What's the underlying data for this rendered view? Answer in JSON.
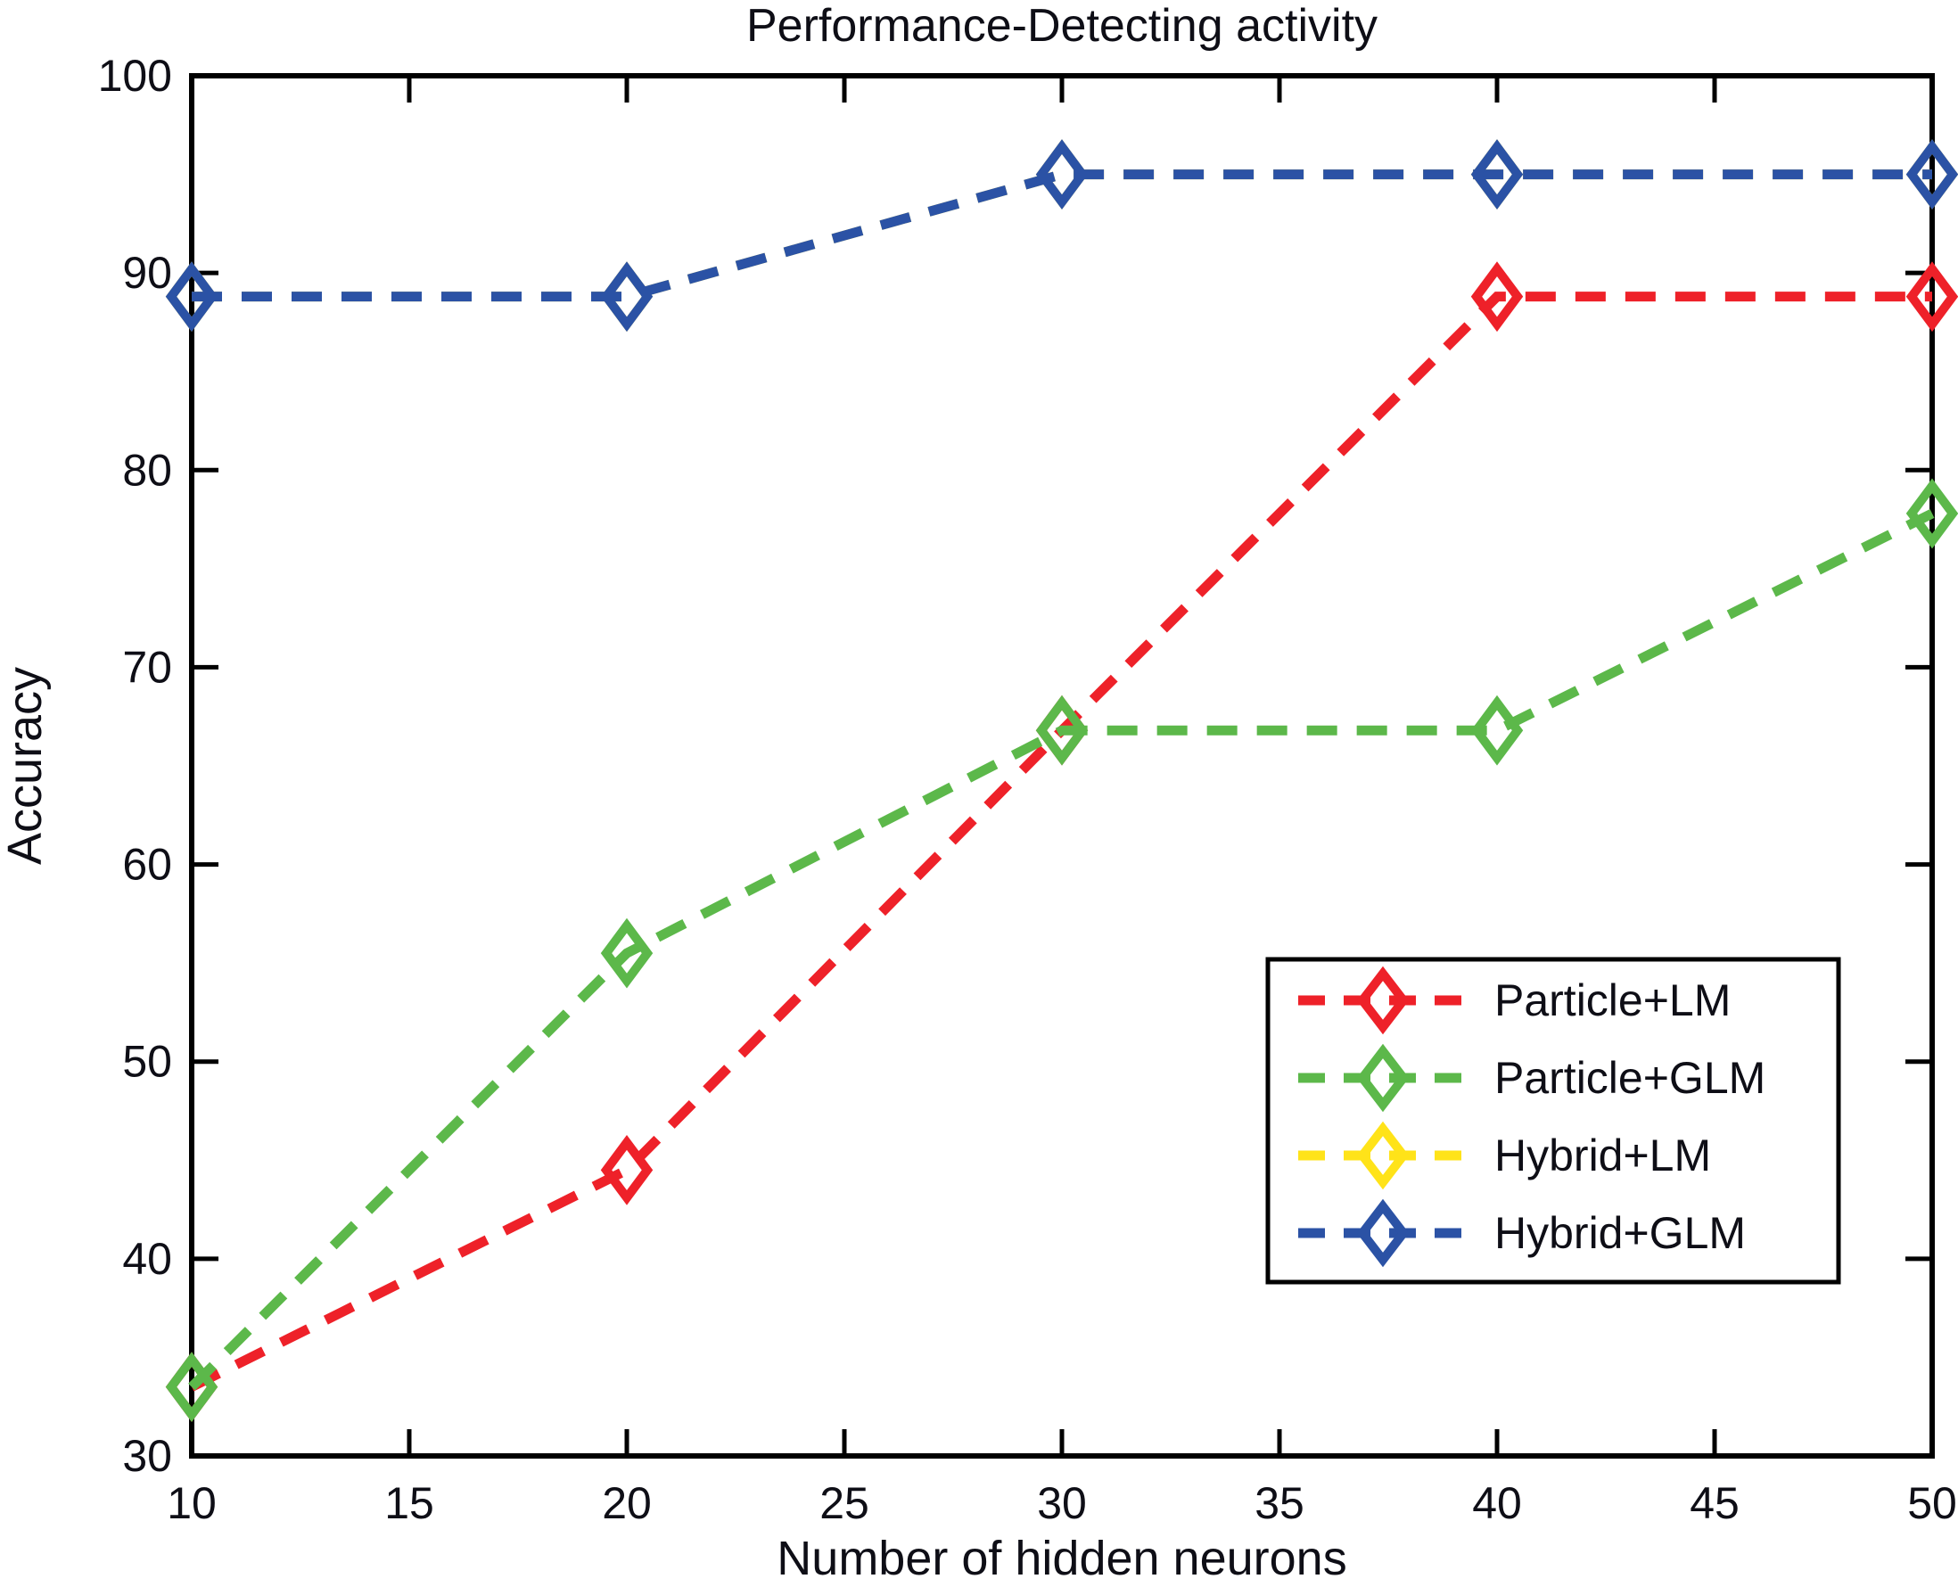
{
  "figure": {
    "background": "#ffffff",
    "axis_color": "#000000",
    "text_color": "#0e0e16"
  },
  "chart_data": {
    "type": "line",
    "title": "Performance-Detecting activity",
    "xlabel": "Number of hidden neurons",
    "ylabel": "Accuracy",
    "x": [
      10,
      20,
      30,
      40,
      50
    ],
    "xlim": [
      10,
      50
    ],
    "ylim": [
      30,
      100
    ],
    "x_ticks": [
      10,
      15,
      20,
      25,
      30,
      35,
      40,
      45,
      50
    ],
    "y_ticks": [
      30,
      40,
      50,
      60,
      70,
      80,
      90,
      100
    ],
    "grid": false,
    "line_style": "dashed",
    "marker": "open-diamond",
    "legend_position": "inside lower right",
    "series": [
      {
        "name": "Particle+LM",
        "color": "#ee2129",
        "values": [
          33.5,
          44.5,
          66.8,
          88.8,
          88.8
        ]
      },
      {
        "name": "Particle+GLM",
        "color": "#5cb84a",
        "values": [
          33.5,
          55.5,
          66.8,
          66.8,
          77.8
        ]
      },
      {
        "name": "Hybrid+LM",
        "color": "#ffe319",
        "values": [
          88.8,
          88.8,
          95.0,
          95.0,
          95.0
        ],
        "hidden_behind": "Hybrid+GLM"
      },
      {
        "name": "Hybrid+GLM",
        "color": "#2b52a5",
        "values": [
          88.8,
          88.8,
          95.0,
          95.0,
          95.0
        ]
      }
    ]
  }
}
